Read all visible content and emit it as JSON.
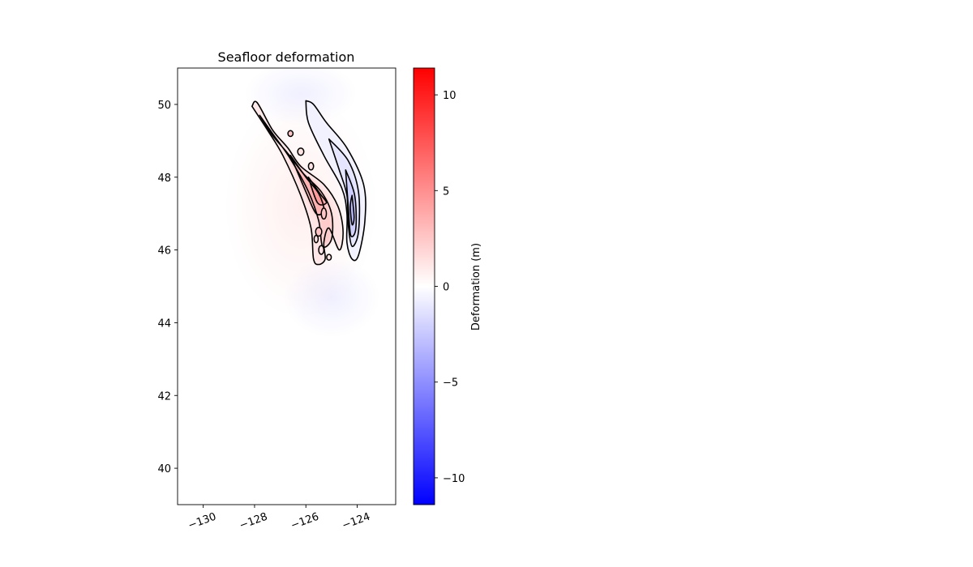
{
  "chart_data": {
    "type": "heatmap",
    "title": "Seafloor deformation",
    "xlabel": "",
    "ylabel": "",
    "x_ticks": [
      -130,
      -128,
      -126,
      -124
    ],
    "x_tick_labels": [
      "−130",
      "−128",
      "−126",
      "−124"
    ],
    "y_ticks": [
      40,
      42,
      44,
      46,
      48,
      50
    ],
    "y_tick_labels": [
      "40",
      "42",
      "44",
      "46",
      "48",
      "50"
    ],
    "xlim": [
      -131,
      -122.5
    ],
    "ylim": [
      39,
      51
    ],
    "grid": false,
    "colormap": "bwr",
    "colormap_colors": {
      "low": "#0000ff",
      "mid": "#ffffff",
      "high": "#ff0000"
    },
    "colorbar": {
      "label": "Deformation (m)",
      "range": [
        -11.4,
        11.4
      ],
      "ticks": [
        10,
        5,
        0,
        -5,
        -10
      ],
      "tick_labels": [
        "10",
        "5",
        "0",
        "−5",
        "−10"
      ]
    },
    "contour_color": "#000000",
    "uplift_zone": {
      "description_values": "peak uplift near -125.3, 47.6",
      "peak_value": 5.5,
      "path": [
        [
          -128.1,
          49.95
        ],
        [
          -127.9,
          50.05
        ],
        [
          -127.3,
          49.3
        ],
        [
          -126.7,
          48.8
        ],
        [
          -126.2,
          48.3
        ],
        [
          -125.3,
          47.8
        ],
        [
          -124.75,
          47.2
        ],
        [
          -124.55,
          46.5
        ],
        [
          -124.7,
          46.0
        ],
        [
          -125.1,
          46.6
        ],
        [
          -125.3,
          46.2
        ],
        [
          -125.25,
          45.75
        ],
        [
          -125.5,
          45.6
        ],
        [
          -125.7,
          45.75
        ],
        [
          -125.8,
          46.6
        ],
        [
          -126.2,
          47.5
        ],
        [
          -126.9,
          48.6
        ],
        [
          -127.5,
          49.3
        ],
        [
          -128.1,
          49.95
        ]
      ]
    },
    "subsidence_zone": {
      "description_values": "peak subsidence near -124.2, 47.0",
      "peak_value": -3.5,
      "path": [
        [
          -126.0,
          50.1
        ],
        [
          -125.7,
          50.0
        ],
        [
          -125.2,
          49.5
        ],
        [
          -124.4,
          48.8
        ],
        [
          -123.75,
          47.8
        ],
        [
          -123.7,
          46.8
        ],
        [
          -123.95,
          45.85
        ],
        [
          -124.2,
          45.75
        ],
        [
          -124.4,
          46.2
        ],
        [
          -124.4,
          47.0
        ],
        [
          -124.6,
          47.7
        ],
        [
          -125.3,
          48.6
        ],
        [
          -125.9,
          49.5
        ],
        [
          -126.0,
          50.1
        ]
      ]
    },
    "contour_levels": [
      {
        "value": 1,
        "path": [
          [
            -128.1,
            49.95
          ],
          [
            -127.9,
            50.05
          ],
          [
            -127.3,
            49.3
          ],
          [
            -126.7,
            48.8
          ],
          [
            -126.2,
            48.3
          ],
          [
            -125.3,
            47.8
          ],
          [
            -124.75,
            47.2
          ],
          [
            -124.55,
            46.5
          ],
          [
            -124.7,
            46.0
          ],
          [
            -125.1,
            46.6
          ],
          [
            -125.3,
            46.2
          ],
          [
            -125.25,
            45.75
          ],
          [
            -125.5,
            45.6
          ],
          [
            -125.7,
            45.75
          ],
          [
            -125.8,
            46.6
          ],
          [
            -126.2,
            47.5
          ],
          [
            -126.9,
            48.6
          ],
          [
            -127.5,
            49.3
          ],
          [
            -128.1,
            49.95
          ]
        ]
      },
      {
        "value": 2,
        "path": [
          [
            -127.8,
            49.7
          ],
          [
            -127.3,
            49.15
          ],
          [
            -126.7,
            48.65
          ],
          [
            -126.1,
            48.1
          ],
          [
            -125.4,
            47.6
          ],
          [
            -125.0,
            47.0
          ],
          [
            -125.0,
            46.3
          ],
          [
            -125.35,
            46.1
          ],
          [
            -125.5,
            46.8
          ],
          [
            -125.9,
            47.6
          ],
          [
            -126.6,
            48.5
          ],
          [
            -127.3,
            49.2
          ],
          [
            -127.8,
            49.7
          ]
        ]
      },
      {
        "value": 3,
        "path": [
          [
            -126.6,
            48.6
          ],
          [
            -126.0,
            48.0
          ],
          [
            -125.5,
            47.55
          ],
          [
            -125.3,
            47.1
          ],
          [
            -125.6,
            47.0
          ],
          [
            -126.0,
            47.6
          ],
          [
            -126.6,
            48.6
          ]
        ]
      },
      {
        "value": 4,
        "path": [
          [
            -125.9,
            48.0
          ],
          [
            -125.45,
            47.55
          ],
          [
            -125.2,
            47.3
          ],
          [
            -125.55,
            47.3
          ],
          [
            -125.9,
            48.0
          ]
        ]
      },
      {
        "value": -0.5,
        "path": [
          [
            -126.0,
            50.1
          ],
          [
            -125.7,
            50.0
          ],
          [
            -125.2,
            49.5
          ],
          [
            -124.4,
            48.8
          ],
          [
            -123.75,
            47.8
          ],
          [
            -123.7,
            46.8
          ],
          [
            -123.95,
            45.85
          ],
          [
            -124.2,
            45.75
          ],
          [
            -124.4,
            46.2
          ],
          [
            -124.4,
            47.0
          ],
          [
            -124.6,
            47.7
          ],
          [
            -125.3,
            48.6
          ],
          [
            -125.9,
            49.5
          ],
          [
            -126.0,
            50.1
          ]
        ]
      },
      {
        "value": -1.0,
        "path": [
          [
            -125.1,
            49.05
          ],
          [
            -124.35,
            48.45
          ],
          [
            -123.95,
            47.6
          ],
          [
            -123.95,
            46.5
          ],
          [
            -124.2,
            46.1
          ],
          [
            -124.35,
            46.7
          ],
          [
            -124.4,
            47.5
          ],
          [
            -124.7,
            48.2
          ],
          [
            -125.1,
            49.05
          ]
        ]
      },
      {
        "value": -2.0,
        "path": [
          [
            -124.45,
            48.2
          ],
          [
            -124.1,
            47.5
          ],
          [
            -124.05,
            46.6
          ],
          [
            -124.25,
            46.4
          ],
          [
            -124.35,
            47.2
          ],
          [
            -124.45,
            48.2
          ]
        ]
      },
      {
        "value": -3.0,
        "path": [
          [
            -124.2,
            47.5
          ],
          [
            -124.12,
            46.9
          ],
          [
            -124.2,
            46.7
          ],
          [
            -124.27,
            47.2
          ],
          [
            -124.2,
            47.5
          ]
        ]
      }
    ],
    "small_contours": [
      {
        "value": 1,
        "center": [
          -126.2,
          48.7
        ],
        "radius": [
          0.12,
          0.1
        ]
      },
      {
        "value": 2,
        "center": [
          -125.3,
          47.0
        ],
        "radius": [
          0.1,
          0.15
        ]
      },
      {
        "value": 2,
        "center": [
          -125.5,
          46.5
        ],
        "radius": [
          0.12,
          0.12
        ]
      },
      {
        "value": 1,
        "center": [
          -125.4,
          46.0
        ],
        "radius": [
          0.1,
          0.12
        ]
      },
      {
        "value": 1,
        "center": [
          -125.6,
          46.3
        ],
        "radius": [
          0.08,
          0.1
        ]
      },
      {
        "value": 1,
        "center": [
          -125.1,
          45.8
        ],
        "radius": [
          0.09,
          0.08
        ]
      },
      {
        "value": 2,
        "center": [
          -126.6,
          49.2
        ],
        "radius": [
          0.1,
          0.08
        ]
      },
      {
        "value": 1,
        "center": [
          -125.8,
          48.3
        ],
        "radius": [
          0.1,
          0.1
        ]
      }
    ]
  }
}
